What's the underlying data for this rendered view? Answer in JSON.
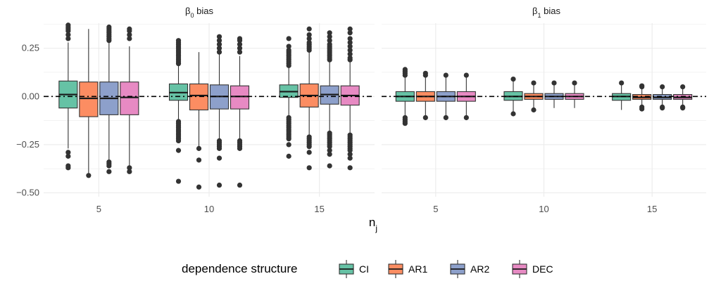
{
  "chart_data": [
    {
      "type": "box",
      "panel_title": "β₀ bias",
      "panel_title_base": "β",
      "panel_title_sub": "0",
      "panel_title_rest": " bias",
      "categories": [
        "5",
        "10",
        "15"
      ],
      "ylim": [
        -0.52,
        0.38
      ],
      "yticks": [
        -0.5,
        -0.25,
        0.0,
        0.25
      ],
      "ytick_labels": [
        "−0.50",
        "−0.25",
        "0.00",
        "0.25"
      ],
      "reference_line": 0,
      "series": [
        {
          "name": "CI",
          "boxes": [
            {
              "x": "5",
              "q1": -0.06,
              "median": 0.01,
              "q3": 0.08,
              "whisker_low": -0.27,
              "whisker_high": 0.28,
              "outliers": [
                0.3,
                0.32,
                0.34,
                0.35,
                0.36,
                0.37,
                -0.29,
                -0.31,
                -0.36,
                -0.37
              ]
            },
            {
              "x": "10",
              "q1": -0.02,
              "median": 0.02,
              "q3": 0.065,
              "whisker_low": -0.12,
              "whisker_high": 0.16,
              "outliers": [
                0.17,
                0.18,
                0.19,
                0.2,
                0.21,
                0.22,
                0.23,
                0.24,
                0.25,
                0.26,
                0.27,
                0.28,
                0.29,
                -0.13,
                -0.14,
                -0.15,
                -0.16,
                -0.17,
                -0.18,
                -0.19,
                -0.2,
                -0.21,
                -0.22,
                -0.23,
                -0.28,
                -0.44
              ]
            },
            {
              "x": "15",
              "q1": -0.005,
              "median": 0.025,
              "q3": 0.06,
              "whisker_low": -0.1,
              "whisker_high": 0.15,
              "outliers": [
                0.16,
                0.17,
                0.18,
                0.19,
                0.2,
                0.21,
                0.22,
                0.23,
                0.24,
                0.26,
                0.3,
                -0.11,
                -0.12,
                -0.13,
                -0.14,
                -0.15,
                -0.16,
                -0.17,
                -0.18,
                -0.19,
                -0.2,
                -0.21,
                -0.22,
                -0.25,
                -0.31
              ]
            }
          ]
        },
        {
          "name": "AR1",
          "boxes": [
            {
              "x": "5",
              "q1": -0.105,
              "median": -0.01,
              "q3": 0.075,
              "whisker_low": -0.4,
              "whisker_high": 0.35,
              "outliers": [
                -0.41
              ]
            },
            {
              "x": "10",
              "q1": -0.07,
              "median": 0.005,
              "q3": 0.065,
              "whisker_low": -0.26,
              "whisker_high": 0.23,
              "outliers": [
                -0.27,
                -0.33,
                -0.47
              ]
            },
            {
              "x": "15",
              "q1": -0.055,
              "median": 0.005,
              "q3": 0.065,
              "whisker_low": -0.2,
              "whisker_high": 0.23,
              "outliers": [
                0.24,
                0.25,
                0.26,
                0.27,
                0.28,
                0.3,
                0.32,
                0.35,
                -0.21,
                -0.22,
                -0.23,
                -0.24,
                -0.25,
                -0.26,
                -0.29,
                -0.37
              ]
            }
          ]
        },
        {
          "name": "AR2",
          "boxes": [
            {
              "x": "5",
              "q1": -0.095,
              "median": -0.01,
              "q3": 0.075,
              "whisker_low": -0.33,
              "whisker_high": 0.28,
              "outliers": [
                0.29,
                0.3,
                0.31,
                0.32,
                0.33,
                0.34,
                0.35,
                0.36,
                -0.34,
                -0.35,
                -0.36,
                -0.39
              ]
            },
            {
              "x": "10",
              "q1": -0.065,
              "median": 0.0,
              "q3": 0.06,
              "whisker_low": -0.22,
              "whisker_high": 0.22,
              "outliers": [
                0.23,
                0.25,
                0.27,
                0.29,
                0.31,
                -0.23,
                -0.24,
                -0.25,
                -0.26,
                -0.27,
                -0.32,
                -0.46
              ]
            },
            {
              "x": "15",
              "q1": -0.04,
              "median": 0.01,
              "q3": 0.055,
              "whisker_low": -0.18,
              "whisker_high": 0.18,
              "outliers": [
                0.19,
                0.2,
                0.21,
                0.22,
                0.23,
                0.24,
                0.25,
                0.26,
                0.27,
                0.29,
                0.31,
                0.33,
                -0.19,
                -0.2,
                -0.21,
                -0.22,
                -0.23,
                -0.24,
                -0.25,
                -0.26,
                -0.28,
                -0.3,
                -0.36
              ]
            }
          ]
        },
        {
          "name": "DEC",
          "boxes": [
            {
              "x": "5",
              "q1": -0.095,
              "median": -0.005,
              "q3": 0.075,
              "whisker_low": -0.36,
              "whisker_high": 0.26,
              "outliers": [
                0.3,
                0.32,
                0.34,
                0.35,
                -0.37,
                -0.39
              ]
            },
            {
              "x": "10",
              "q1": -0.065,
              "median": 0.0,
              "q3": 0.055,
              "whisker_low": -0.22,
              "whisker_high": 0.21,
              "outliers": [
                0.23,
                0.25,
                0.27,
                0.29,
                0.3,
                -0.23,
                -0.24,
                -0.25,
                -0.26,
                -0.27,
                -0.46
              ]
            },
            {
              "x": "15",
              "q1": -0.045,
              "median": 0.005,
              "q3": 0.055,
              "whisker_low": -0.19,
              "whisker_high": 0.18,
              "outliers": [
                0.19,
                0.2,
                0.22,
                0.24,
                0.26,
                0.28,
                0.3,
                0.33,
                0.35,
                -0.2,
                -0.21,
                -0.22,
                -0.23,
                -0.24,
                -0.25,
                -0.26,
                -0.27,
                -0.28,
                -0.3,
                -0.32,
                -0.37
              ]
            }
          ]
        }
      ]
    },
    {
      "type": "box",
      "panel_title": "β₁ bias",
      "panel_title_base": "β",
      "panel_title_sub": "1",
      "panel_title_rest": " bias",
      "categories": [
        "5",
        "10",
        "15"
      ],
      "ylim": [
        -0.52,
        0.38
      ],
      "reference_line": 0,
      "series": [
        {
          "name": "CI",
          "boxes": [
            {
              "x": "5",
              "q1": -0.025,
              "median": 0.0,
              "q3": 0.025,
              "whisker_low": -0.1,
              "whisker_high": 0.1,
              "outliers": [
                0.11,
                0.12,
                0.13,
                0.14,
                -0.11,
                -0.12,
                -0.13,
                -0.14
              ]
            },
            {
              "x": "10",
              "q1": -0.02,
              "median": 0.0,
              "q3": 0.025,
              "whisker_low": -0.08,
              "whisker_high": 0.08,
              "outliers": [
                0.09,
                -0.09
              ]
            },
            {
              "x": "15",
              "q1": -0.02,
              "median": 0.0,
              "q3": 0.015,
              "whisker_low": -0.07,
              "whisker_high": 0.06,
              "outliers": [
                0.07
              ]
            }
          ]
        },
        {
          "name": "AR1",
          "boxes": [
            {
              "x": "5",
              "q1": -0.025,
              "median": 0.0,
              "q3": 0.025,
              "whisker_low": -0.1,
              "whisker_high": 0.1,
              "outliers": [
                0.11,
                0.12,
                -0.11
              ]
            },
            {
              "x": "10",
              "q1": -0.015,
              "median": 0.0,
              "q3": 0.015,
              "whisker_low": -0.06,
              "whisker_high": 0.06,
              "outliers": [
                0.07,
                -0.07
              ]
            },
            {
              "x": "15",
              "q1": -0.015,
              "median": -0.005,
              "q3": 0.01,
              "whisker_low": -0.05,
              "whisker_high": 0.045,
              "outliers": [
                0.05,
                0.055,
                -0.055,
                -0.065
              ]
            }
          ]
        },
        {
          "name": "AR2",
          "boxes": [
            {
              "x": "5",
              "q1": -0.025,
              "median": 0.0,
              "q3": 0.025,
              "whisker_low": -0.1,
              "whisker_high": 0.1,
              "outliers": [
                0.11,
                -0.11
              ]
            },
            {
              "x": "10",
              "q1": -0.015,
              "median": 0.0,
              "q3": 0.015,
              "whisker_low": -0.06,
              "whisker_high": 0.06,
              "outliers": [
                0.07
              ]
            },
            {
              "x": "15",
              "q1": -0.015,
              "median": -0.005,
              "q3": 0.01,
              "whisker_low": -0.05,
              "whisker_high": 0.045,
              "outliers": [
                0.05,
                -0.055,
                -0.06
              ]
            }
          ]
        },
        {
          "name": "DEC",
          "boxes": [
            {
              "x": "5",
              "q1": -0.025,
              "median": 0.0,
              "q3": 0.025,
              "whisker_low": -0.1,
              "whisker_high": 0.1,
              "outliers": [
                0.11,
                -0.11
              ]
            },
            {
              "x": "10",
              "q1": -0.015,
              "median": 0.0,
              "q3": 0.015,
              "whisker_low": -0.06,
              "whisker_high": 0.06,
              "outliers": [
                0.07
              ]
            },
            {
              "x": "15",
              "q1": -0.015,
              "median": -0.005,
              "q3": 0.01,
              "whisker_low": -0.05,
              "whisker_high": 0.045,
              "outliers": [
                0.05,
                -0.055,
                -0.06
              ]
            }
          ]
        }
      ]
    }
  ],
  "xaxis": {
    "title_base": "n",
    "title_sub": "j"
  },
  "legend": {
    "title": "dependence structure",
    "position": "bottom",
    "items": [
      {
        "name": "CI",
        "color": "#66C2A5"
      },
      {
        "name": "AR1",
        "color": "#FC8D62"
      },
      {
        "name": "AR2",
        "color": "#8DA0CB"
      },
      {
        "name": "DEC",
        "color": "#E78AC3"
      }
    ]
  },
  "colors": {
    "CI": "#66C2A5",
    "AR1": "#FC8D62",
    "AR2": "#8DA0CB",
    "DEC": "#E78AC3",
    "grid": "#EBEBEB",
    "outline": "#333333"
  }
}
